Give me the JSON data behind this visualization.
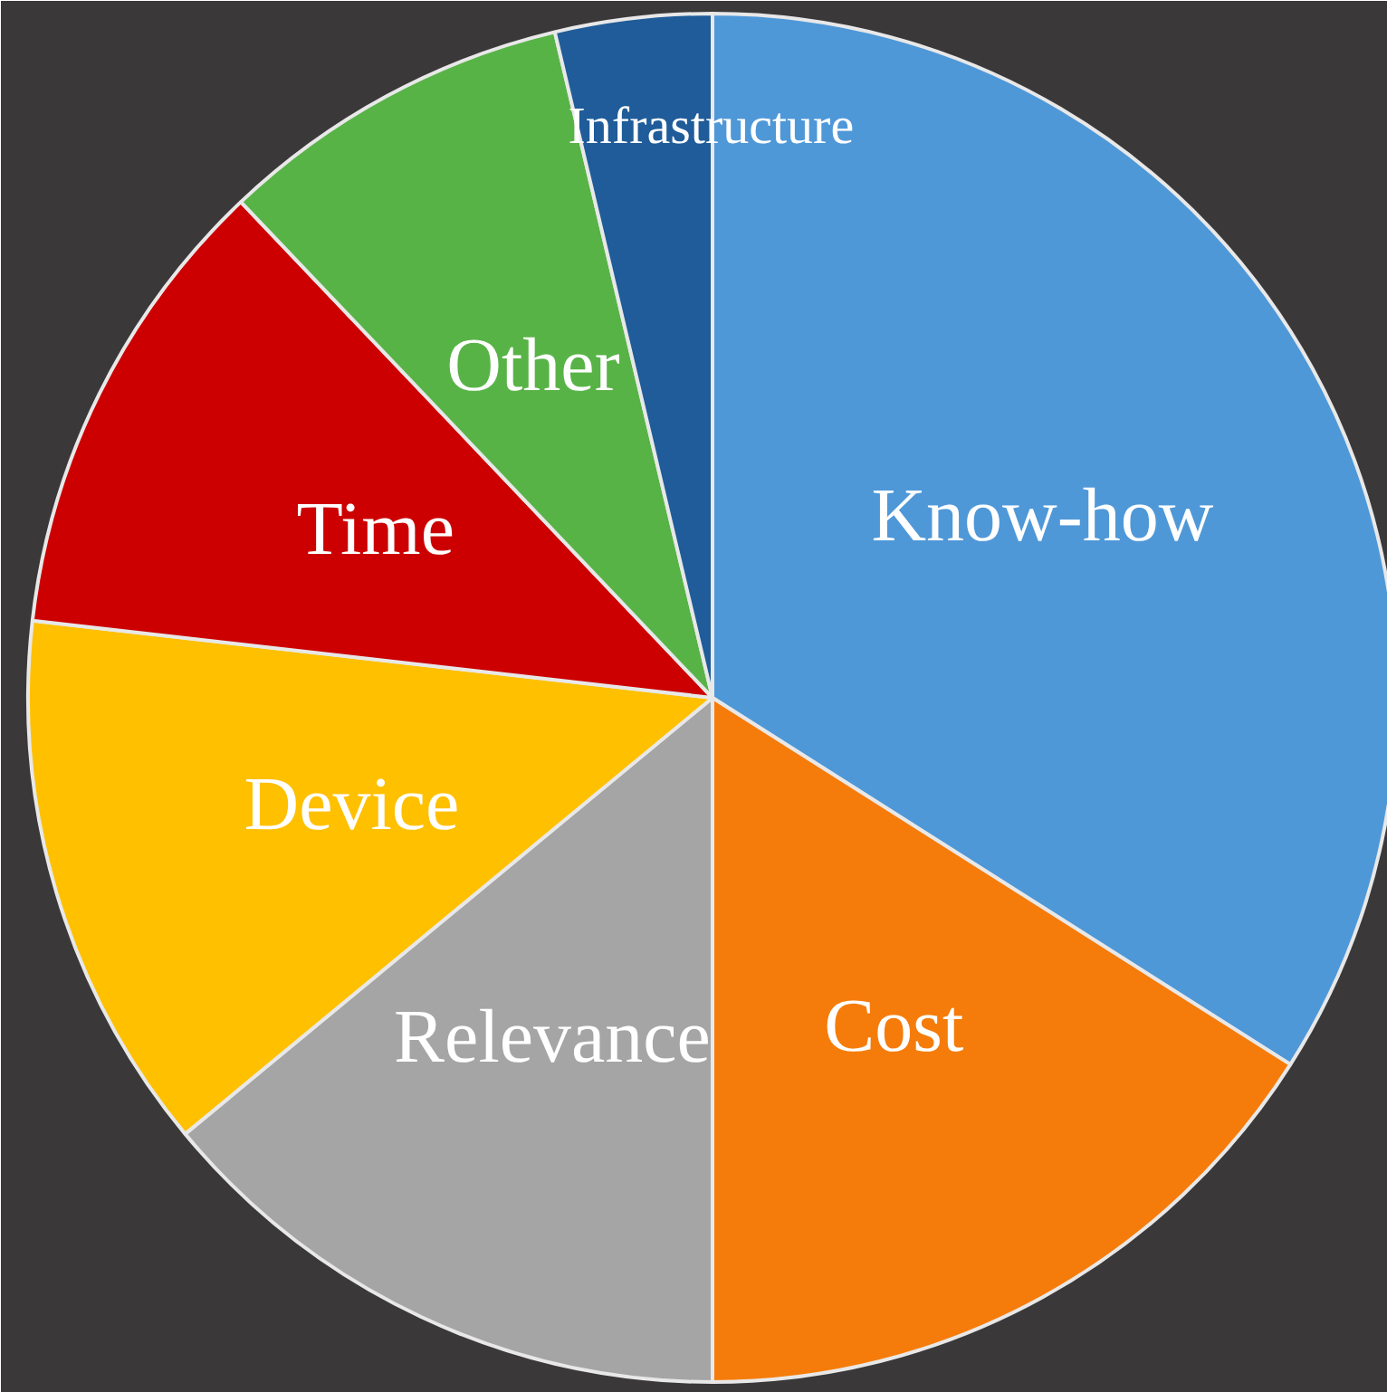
{
  "chart_data": {
    "type": "pie",
    "categories": [
      "Know-how",
      "Cost",
      "Relevance",
      "Device",
      "Time",
      "Other",
      "Infrastructure"
    ],
    "values": [
      34,
      16,
      14,
      12.8,
      11.1,
      8.4,
      3.7
    ],
    "colors": [
      "#4f98d8",
      "#f57c0a",
      "#a5a5a5",
      "#ffc000",
      "#cc0000",
      "#58b347",
      "#1f5c99"
    ]
  }
}
